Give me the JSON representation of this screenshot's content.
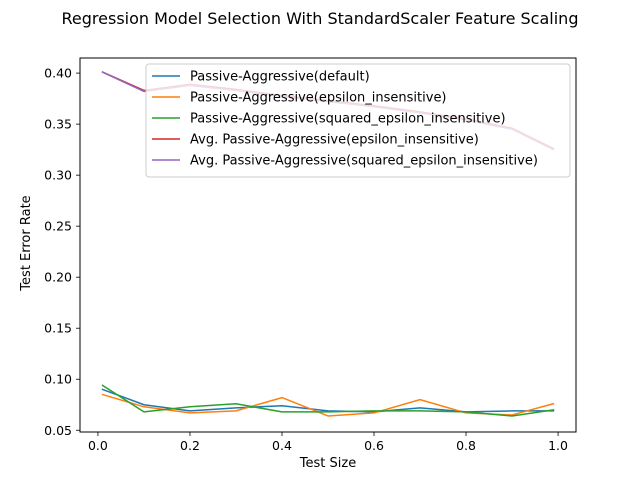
{
  "chart_data": {
    "type": "line",
    "title": "Regression Model Selection With StandardScaler Feature Scaling",
    "xlabel": "Test Size",
    "ylabel": "Test Error Rate",
    "xlim": [
      -0.039,
      1.039
    ],
    "ylim": [
      0.0483,
      0.4148
    ],
    "xticks": [
      {
        "value": 0.0,
        "label": "0.0"
      },
      {
        "value": 0.2,
        "label": "0.2"
      },
      {
        "value": 0.4,
        "label": "0.4"
      },
      {
        "value": 0.6,
        "label": "0.6"
      },
      {
        "value": 0.8,
        "label": "0.8"
      },
      {
        "value": 1.0,
        "label": "1.0"
      }
    ],
    "yticks": [
      {
        "value": 0.05,
        "label": "0.05"
      },
      {
        "value": 0.1,
        "label": "0.10"
      },
      {
        "value": 0.15,
        "label": "0.15"
      },
      {
        "value": 0.2,
        "label": "0.20"
      },
      {
        "value": 0.25,
        "label": "0.25"
      },
      {
        "value": 0.3,
        "label": "0.30"
      },
      {
        "value": 0.35,
        "label": "0.35"
      },
      {
        "value": 0.4,
        "label": "0.40"
      }
    ],
    "grid": false,
    "legend_position": "upper-right",
    "x": [
      0.01,
      0.1,
      0.2,
      0.3,
      0.4,
      0.5,
      0.6,
      0.7,
      0.8,
      0.9,
      0.99
    ],
    "series": [
      {
        "name": "Passive-Aggressive(default)",
        "color": "#1f77b4",
        "values": [
          0.09,
          0.075,
          0.069,
          0.072,
          0.074,
          0.069,
          0.068,
          0.072,
          0.068,
          0.069,
          0.069
        ]
      },
      {
        "name": "Passive-Aggressive(epsilon_insensitive)",
        "color": "#ff7f0e",
        "values": [
          0.085,
          0.073,
          0.067,
          0.069,
          0.082,
          0.064,
          0.067,
          0.08,
          0.067,
          0.065,
          0.076
        ]
      },
      {
        "name": "Passive-Aggressive(squared_epsilon_insensitive)",
        "color": "#2ca02c",
        "values": [
          0.094,
          0.068,
          0.073,
          0.076,
          0.068,
          0.068,
          0.069,
          0.069,
          0.068,
          0.064,
          0.07
        ]
      },
      {
        "name": "Avg. Passive-Aggressive(epsilon_insensitive)",
        "color": "#d62728",
        "values": [
          0.401,
          0.383,
          0.389,
          0.384,
          0.378,
          0.373,
          0.368,
          0.362,
          0.355,
          0.346,
          0.326
        ]
      },
      {
        "name": "Avg. Passive-Aggressive(squared_epsilon_insensitive)",
        "color": "#9467bd",
        "values": [
          0.401,
          0.382,
          0.388,
          0.383,
          0.377,
          0.372,
          0.367,
          0.361,
          0.354,
          0.345,
          0.325
        ]
      }
    ]
  }
}
